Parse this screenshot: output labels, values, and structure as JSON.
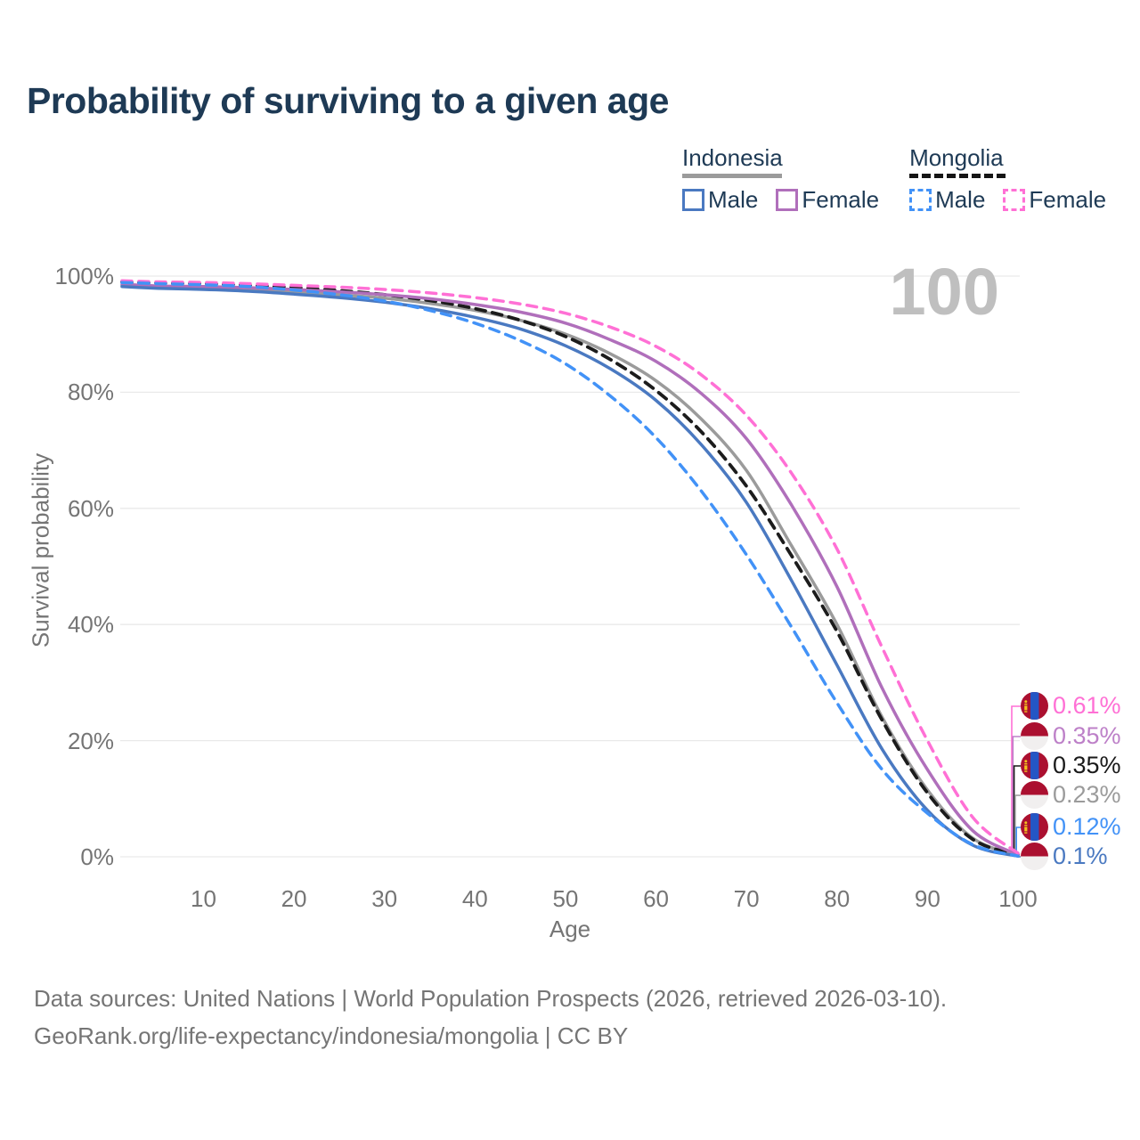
{
  "title": "Probability of surviving to a given age",
  "watermark": "100",
  "legend": {
    "groups": [
      {
        "name": "Indonesia",
        "line_style": "solid",
        "underline_color": "#9b9b9b",
        "items": [
          {
            "label": "Male",
            "color": "#4a79c1",
            "dashed": false
          },
          {
            "label": "Female",
            "color": "#b06fbb",
            "dashed": false
          }
        ]
      },
      {
        "name": "Mongolia",
        "line_style": "dashed",
        "underline_color": "#151515",
        "items": [
          {
            "label": "Male",
            "color": "#4292f7",
            "dashed": true
          },
          {
            "label": "Female",
            "color": "#ff70d5",
            "dashed": true
          }
        ]
      }
    ]
  },
  "chart_data": {
    "type": "line",
    "title": "Probability of surviving to a given age",
    "xlabel": "Age",
    "ylabel": "Survival probability",
    "xlim": [
      1,
      100
    ],
    "ylim": [
      0,
      100
    ],
    "grid": "horizontal",
    "legend_position": "top-right",
    "x_ticks": [
      10,
      20,
      30,
      40,
      50,
      60,
      70,
      80,
      90,
      100
    ],
    "y_ticks": [
      {
        "v": 100,
        "label": "100%"
      },
      {
        "v": 80,
        "label": "80%"
      },
      {
        "v": 60,
        "label": "60%"
      },
      {
        "v": 40,
        "label": "40%"
      },
      {
        "v": 20,
        "label": "20%"
      },
      {
        "v": 0,
        "label": "0%"
      }
    ],
    "x": [
      1,
      5,
      10,
      15,
      20,
      25,
      30,
      35,
      40,
      45,
      50,
      55,
      60,
      65,
      70,
      75,
      80,
      85,
      90,
      95,
      100
    ],
    "series": [
      {
        "name": "Mongolia Female",
        "country": "Mongolia",
        "sex": "Female",
        "dashed": true,
        "color": "#ff70d5",
        "label_color": "#ff70d5",
        "flag": "mongolia-flag-icon",
        "end_label": "0.61%",
        "values": [
          99.2,
          99.0,
          98.9,
          98.7,
          98.4,
          98.1,
          97.7,
          97.1,
          96.3,
          95.2,
          93.6,
          91.2,
          87.9,
          83.0,
          76.0,
          66.0,
          53.0,
          36.0,
          20.0,
          6.8,
          0.61
        ]
      },
      {
        "name": "Indonesia Female",
        "country": "Indonesia",
        "sex": "Female",
        "dashed": false,
        "color": "#b06fbb",
        "label_color": "#bd80c8",
        "flag": "indonesia-flag-icon",
        "end_label": "0.35%",
        "values": [
          98.6,
          98.3,
          98.2,
          98.0,
          97.7,
          97.3,
          96.8,
          96.1,
          95.1,
          93.8,
          91.9,
          89.0,
          85.3,
          79.8,
          72.0,
          60.5,
          46.5,
          29.0,
          15.0,
          4.5,
          0.35
        ]
      },
      {
        "name": "Mongolia",
        "country": "Mongolia",
        "sex": "Both",
        "dashed": true,
        "color": "#1c1c1c",
        "label_color": "#1a1a1a",
        "flag": "mongolia-flag-icon",
        "end_label": "0.35%",
        "values": [
          99.0,
          98.8,
          98.7,
          98.4,
          98.0,
          97.5,
          96.8,
          95.8,
          94.4,
          92.4,
          89.6,
          85.6,
          80.3,
          73.2,
          63.8,
          51.8,
          38.8,
          23.5,
          11.0,
          3.0,
          0.35
        ]
      },
      {
        "name": "Indonesia",
        "country": "Indonesia",
        "sex": "Both",
        "dashed": false,
        "color": "#9b9b9b",
        "label_color": "#9b9b9b",
        "flag": "indonesia-flag-icon",
        "end_label": "0.23%",
        "values": [
          98.4,
          98.1,
          97.9,
          97.7,
          97.3,
          96.8,
          96.2,
          95.3,
          94.1,
          92.4,
          90.0,
          86.6,
          82.0,
          75.4,
          66.5,
          53.5,
          40.0,
          24.0,
          11.5,
          3.2,
          0.23
        ]
      },
      {
        "name": "Mongolia Male",
        "country": "Mongolia",
        "sex": "Male",
        "dashed": true,
        "color": "#4292f7",
        "label_color": "#4292f7",
        "flag": "mongolia-flag-icon",
        "end_label": "0.12%",
        "values": [
          98.9,
          98.7,
          98.5,
          98.2,
          97.6,
          96.8,
          95.7,
          94.1,
          91.9,
          88.9,
          84.9,
          79.3,
          72.2,
          63.0,
          52.0,
          39.5,
          26.5,
          15.0,
          7.5,
          2.1,
          0.12
        ]
      },
      {
        "name": "Indonesia Male",
        "country": "Indonesia",
        "sex": "Male",
        "dashed": false,
        "color": "#4a79c1",
        "label_color": "#4a79c1",
        "flag": "indonesia-flag-icon",
        "end_label": "0.1%",
        "values": [
          98.2,
          97.9,
          97.7,
          97.4,
          96.9,
          96.3,
          95.5,
          94.4,
          92.9,
          90.9,
          88.0,
          84.0,
          78.6,
          71.0,
          61.0,
          47.5,
          33.0,
          18.5,
          8.0,
          2.0,
          0.1
        ]
      }
    ]
  },
  "colors": {
    "title": "#1e3a55",
    "axis_text": "#757575",
    "gridline": "#e9e9e9",
    "watermark": "#bfbfbf",
    "flag_red": "#ab1030",
    "flag_blue": "#2456c5",
    "flag_yellow": "#f2c31d",
    "flag_white": "#f1efef"
  },
  "footer": {
    "line1": "Data sources: United Nations | World Population Prospects (2026, retrieved 2026-03-10).",
    "line2": "GeoRank.org/life-expectancy/indonesia/mongolia | CC BY"
  }
}
